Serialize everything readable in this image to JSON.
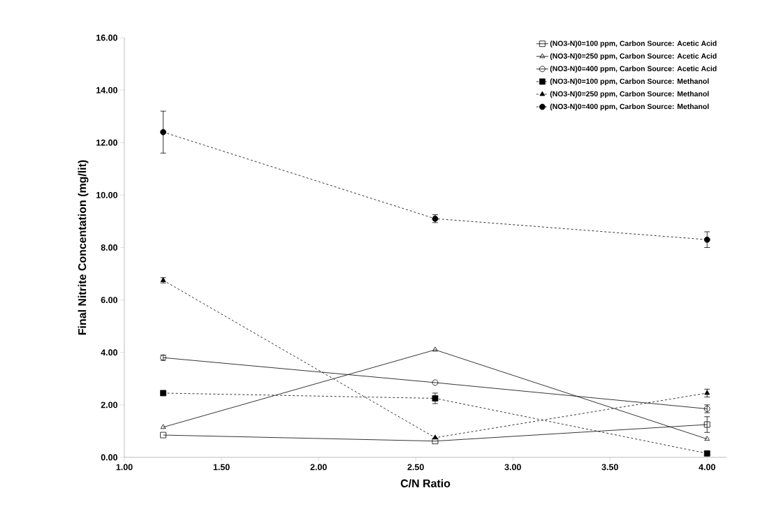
{
  "chart_data": {
    "type": "line",
    "xlabel": "C/N Ratio",
    "ylabel": "Final Nitrite Concentation (mg/lit)",
    "x": [
      1.2,
      2.6,
      4.0
    ],
    "xlim": [
      1.0,
      4.1
    ],
    "ylim": [
      0,
      16
    ],
    "xticks": [
      {
        "value": 1,
        "label": "1.00"
      },
      {
        "value": 1.5,
        "label": "1.50"
      },
      {
        "value": 2,
        "label": "2.00"
      },
      {
        "value": 2.5,
        "label": "2.50"
      },
      {
        "value": 3,
        "label": "3.00"
      },
      {
        "value": 3.5,
        "label": "3.50"
      },
      {
        "value": 4,
        "label": "4.00"
      }
    ],
    "yticks": [
      {
        "value": 0,
        "label": "0.00"
      },
      {
        "value": 2,
        "label": "2.00"
      },
      {
        "value": 4,
        "label": "4.00"
      },
      {
        "value": 6,
        "label": "6.00"
      },
      {
        "value": 8,
        "label": "8.00"
      },
      {
        "value": 10,
        "label": "10.00"
      },
      {
        "value": 12,
        "label": "12.00"
      },
      {
        "value": 14,
        "label": "14.00"
      },
      {
        "value": 16,
        "label": "16.00"
      }
    ],
    "legend": "top right",
    "grid": false,
    "series": [
      {
        "name": "(NO3-N)0=100 ppm, Carbon Source: Acetic Acid",
        "color": "#000000",
        "marker": "square",
        "line_style": "solid",
        "values": [
          0.85,
          0.62,
          1.25
        ],
        "errors": [
          null,
          null,
          0.3
        ]
      },
      {
        "name": "(NO3-N)0=250 ppm, Carbon Source: Acetic Acid",
        "color": "#000000",
        "marker": "triangle",
        "line_style": "solid",
        "values": [
          1.15,
          4.1,
          0.7
        ],
        "errors": [
          null,
          null,
          null
        ]
      },
      {
        "name": "(NO3-N)0=400 ppm, Carbon Source: Acetic Acid",
        "color": "#000000",
        "marker": "circle",
        "line_style": "solid",
        "values": [
          3.8,
          2.85,
          1.85
        ],
        "errors": [
          0.1,
          null,
          0.15
        ]
      },
      {
        "name": "(NO3-N)0=100 ppm, Carbon Source: Methanol",
        "color": "#000000",
        "marker": "square",
        "line_style": "dashed",
        "values": [
          2.45,
          2.25,
          0.15
        ],
        "errors": [
          null,
          0.2,
          null
        ]
      },
      {
        "name": "(NO3-N)0=250 ppm, Carbon Source: Methanol",
        "color": "#000000",
        "marker": "triangle",
        "line_style": "dashed",
        "values": [
          6.75,
          0.75,
          2.45
        ],
        "errors": [
          0.1,
          null,
          0.15
        ]
      },
      {
        "name": "(NO3-N)0=400 ppm, Carbon Source: Methanol",
        "color": "#000000",
        "marker": "circle",
        "line_style": "dashed",
        "values": [
          12.4,
          9.1,
          8.3
        ],
        "errors": [
          0.8,
          0.15,
          0.3
        ]
      }
    ]
  }
}
